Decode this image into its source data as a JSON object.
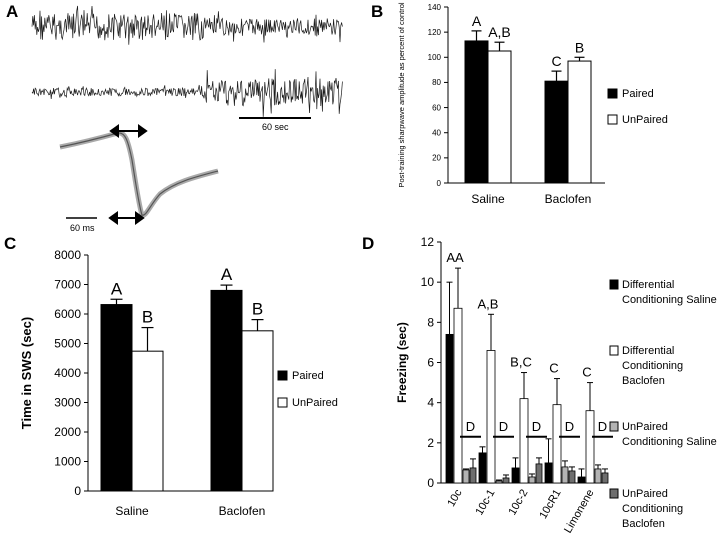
{
  "panels": {
    "A": {
      "letter": "A",
      "scale_top": "60 sec",
      "scale_bottom": "60 ms"
    },
    "B": {
      "letter": "B"
    },
    "C": {
      "letter": "C"
    },
    "D": {
      "letter": "D"
    }
  },
  "colors": {
    "paired": "#000000",
    "unpaired": "#ffffff",
    "unpaired_saline": "#b3b3b3",
    "unpaired_baclofen": "#6e6e6e",
    "trace": "#1a1a1a"
  },
  "chart_data": [
    {
      "panel": "B",
      "type": "bar",
      "ylabel": "Post-training sharpwave amplitude as percent of control",
      "ylim": [
        0,
        140
      ],
      "yticks": [
        "0",
        "20",
        "40",
        "60",
        "80",
        "100",
        "120",
        "140"
      ],
      "categories": [
        "Saline",
        "Baclofen"
      ],
      "series": [
        {
          "name": "Paired",
          "values": [
            113,
            81
          ],
          "errors": [
            8,
            8
          ]
        },
        {
          "name": "UnPaired",
          "values": [
            105,
            97
          ],
          "errors": [
            7,
            3
          ]
        }
      ],
      "significance": [
        [
          "A",
          "A,B"
        ],
        [
          "C",
          "B"
        ]
      ],
      "legend": "right"
    },
    {
      "panel": "C",
      "type": "bar",
      "ylabel": "Time in SWS (sec)",
      "ylim": [
        0,
        8000
      ],
      "yticks": [
        "0",
        "1000",
        "2000",
        "3000",
        "4000",
        "5000",
        "6000",
        "7000",
        "8000"
      ],
      "categories": [
        "Saline",
        "Baclofen"
      ],
      "series": [
        {
          "name": "Paired",
          "values": [
            6320,
            6800
          ],
          "errors": [
            180,
            180
          ]
        },
        {
          "name": "UnPaired",
          "values": [
            4740,
            5430
          ],
          "errors": [
            800,
            380
          ]
        }
      ],
      "significance": [
        [
          "A",
          "B"
        ],
        [
          "A",
          "B"
        ]
      ],
      "legend": "right"
    },
    {
      "panel": "D",
      "type": "bar",
      "ylabel": "Freezing (sec)",
      "ylim": [
        0,
        12
      ],
      "yticks": [
        "0",
        "2",
        "4",
        "6",
        "8",
        "10",
        "12"
      ],
      "categories": [
        "10c",
        "10c-1",
        "10c-2",
        "10cR1",
        "Limonene"
      ],
      "series": [
        {
          "name": "Differential Conditioning Saline",
          "values": [
            7.4,
            1.5,
            0.75,
            1.0,
            0.3
          ],
          "errors": [
            2.6,
            0.3,
            0.5,
            1.2,
            0.4
          ]
        },
        {
          "name": "Differential Conditioning Baclofen",
          "values": [
            8.7,
            6.6,
            4.2,
            3.9,
            3.6
          ],
          "errors": [
            2.0,
            1.8,
            1.3,
            1.3,
            1.4
          ]
        },
        {
          "name": "UnPaired Conditioning Saline",
          "values": [
            0.65,
            0.1,
            0.3,
            0.8,
            0.7
          ],
          "errors": [
            0.05,
            0.05,
            0.15,
            0.3,
            0.2
          ]
        },
        {
          "name": "UnPaired Conditioning Baclofen",
          "values": [
            0.75,
            0.25,
            0.95,
            0.6,
            0.5
          ],
          "errors": [
            0.45,
            0.15,
            0.3,
            0.2,
            0.2
          ]
        }
      ],
      "significance_top": [
        "AA",
        "A,B",
        "B,C",
        "C",
        "C"
      ],
      "significance_low": [
        "D",
        "D",
        "D",
        "D",
        "D"
      ],
      "legend": "right"
    }
  ]
}
